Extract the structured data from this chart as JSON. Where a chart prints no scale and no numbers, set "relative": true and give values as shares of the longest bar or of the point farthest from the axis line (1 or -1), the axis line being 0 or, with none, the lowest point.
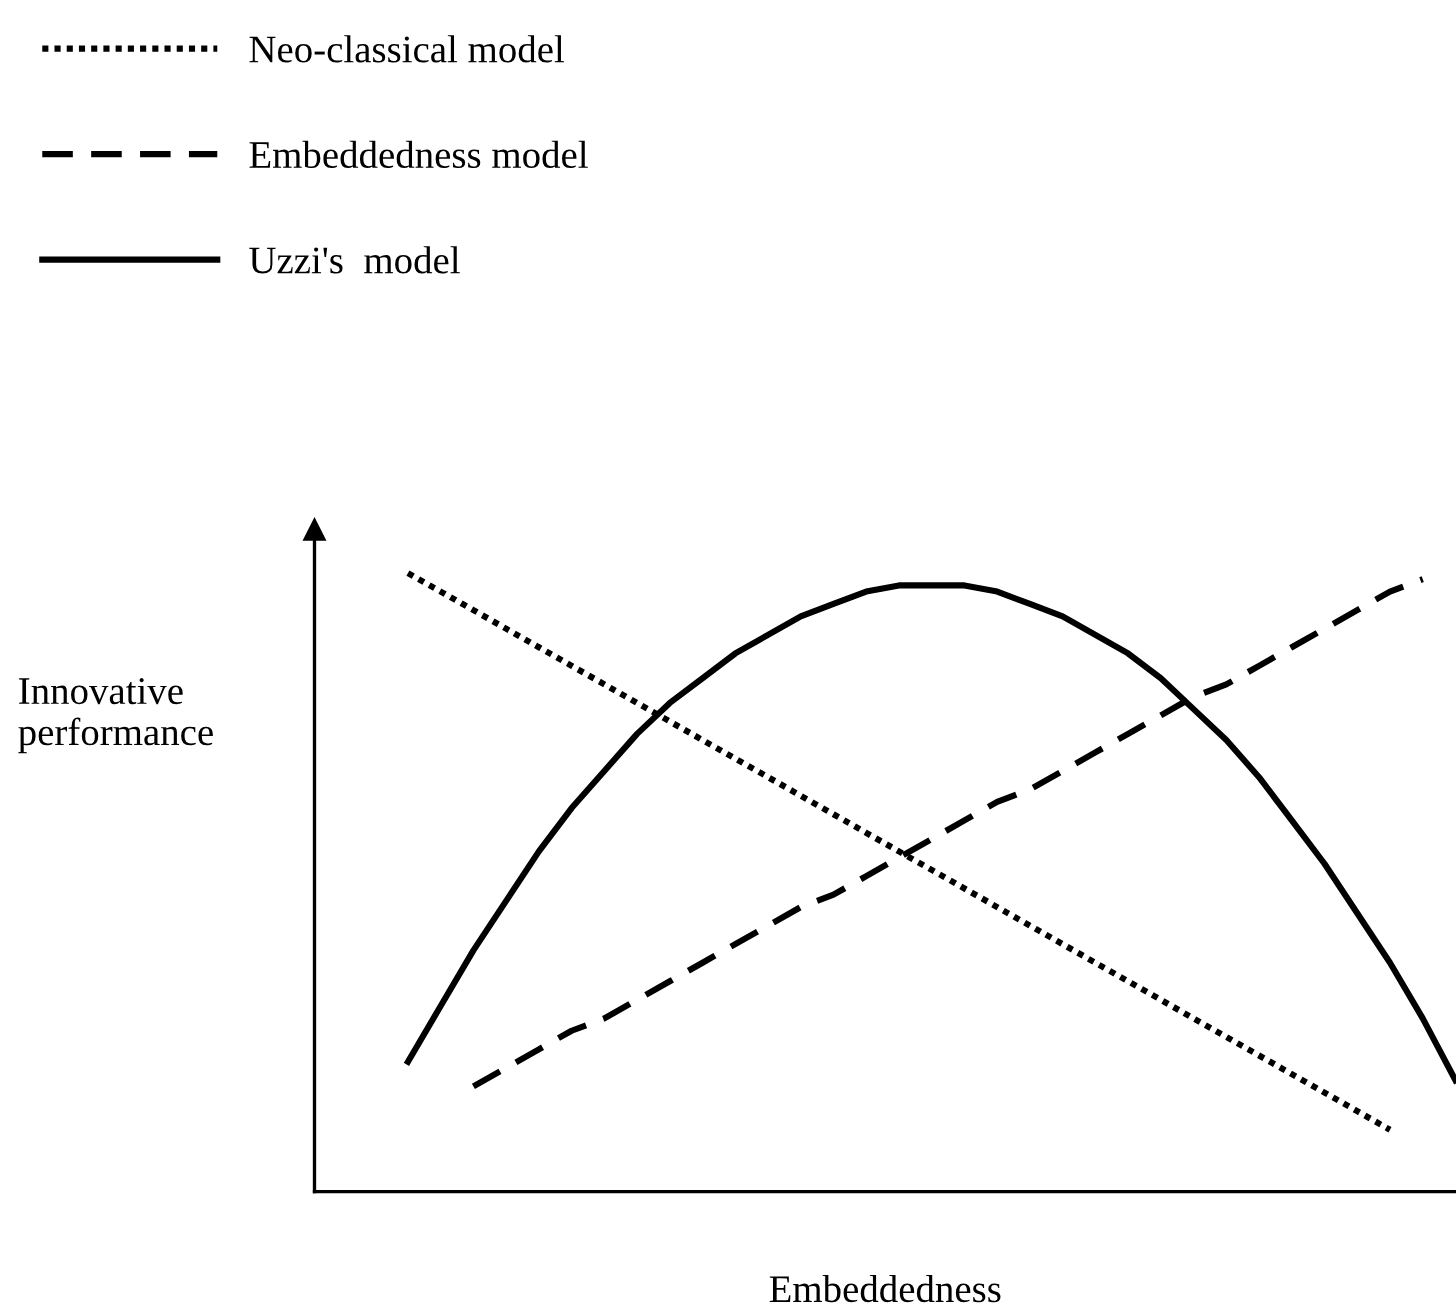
{
  "chart_data": {
    "type": "line",
    "relative": true,
    "xlabel": "Embeddedness",
    "ylabel": "Innovative\nperformance",
    "tick_labels": false,
    "legend": "top left",
    "marker": "none",
    "categories": [
      null,
      null,
      null,
      null,
      null,
      null,
      null,
      null,
      null,
      null,
      null,
      null,
      null,
      null,
      null,
      null,
      null,
      null,
      null,
      null,
      null,
      null,
      null,
      null,
      null,
      null,
      null,
      null,
      null,
      null,
      null,
      null,
      null
    ],
    "series": [
      {
        "name": "Neo-classical model",
        "color": "#000000",
        "line_style": "dotted",
        "values": [
          1.0,
          0.97,
          0.94,
          0.91,
          0.88,
          0.85,
          0.82,
          0.79,
          0.76,
          0.73,
          0.7,
          0.67,
          0.64,
          0.61,
          0.58,
          0.55,
          0.52,
          0.49,
          0.46,
          0.43,
          0.4,
          0.37,
          0.34,
          0.31,
          0.28,
          0.25,
          0.22,
          0.19,
          0.16,
          0.13,
          0.1,
          null,
          null
        ]
      },
      {
        "name": "Embeddedness model",
        "color": "#000000",
        "line_style": "dashed",
        "values": [
          null,
          null,
          0.17,
          0.2,
          0.23,
          0.26,
          0.28,
          0.31,
          0.34,
          0.37,
          0.4,
          0.43,
          0.46,
          0.48,
          0.51,
          0.54,
          0.57,
          0.6,
          0.63,
          0.65,
          0.68,
          0.71,
          0.74,
          0.77,
          0.8,
          0.82,
          0.85,
          0.88,
          0.91,
          0.94,
          0.97,
          0.99,
          null
        ]
      },
      {
        "name": "Uzzi's  model",
        "color": "#000000",
        "line_style": "solid",
        "values": [
          0.21,
          0.3,
          0.39,
          0.47,
          0.55,
          0.62,
          0.68,
          0.74,
          0.79,
          0.83,
          0.87,
          0.9,
          0.93,
          0.95,
          0.97,
          0.98,
          0.98,
          0.98,
          0.97,
          0.95,
          0.93,
          0.9,
          0.87,
          0.83,
          0.78,
          0.73,
          0.67,
          0.6,
          0.53,
          0.45,
          0.37,
          0.28,
          0.18
        ]
      }
    ]
  }
}
